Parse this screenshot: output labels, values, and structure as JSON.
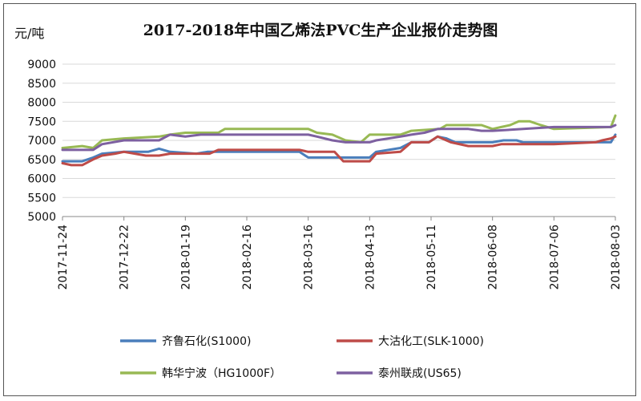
{
  "chart_data": {
    "type": "line",
    "title": "2017-2018年中国乙烯法PVC生产企业报价走势图",
    "ylabel": "元/吨",
    "xlabel": "",
    "ylim": [
      5000,
      9000
    ],
    "yticks": [
      5000,
      5500,
      6000,
      6500,
      7000,
      7500,
      8000,
      8500,
      9000
    ],
    "xlim": [
      "2017-11-24",
      "2018-08-03"
    ],
    "xticks": [
      "2017-11-24",
      "2017-12-22",
      "2018-01-19",
      "2018-02-16",
      "2018-03-16",
      "2018-04-13",
      "2018-05-11",
      "2018-06-08",
      "2018-07-06",
      "2018-08-03"
    ],
    "grid": true,
    "legend": "bottom",
    "series": [
      {
        "name": "齐鲁石化(S1000)",
        "color": "#4a7ebb",
        "points": [
          [
            "2017-11-24",
            6450
          ],
          [
            "2017-12-03",
            6450
          ],
          [
            "2017-12-08",
            6550
          ],
          [
            "2017-12-12",
            6650
          ],
          [
            "2017-12-22",
            6700
          ],
          [
            "2018-01-02",
            6700
          ],
          [
            "2018-01-07",
            6780
          ],
          [
            "2018-01-12",
            6700
          ],
          [
            "2018-01-24",
            6650
          ],
          [
            "2018-01-29",
            6700
          ],
          [
            "2018-03-12",
            6700
          ],
          [
            "2018-03-16",
            6550
          ],
          [
            "2018-04-01",
            6550
          ],
          [
            "2018-04-13",
            6550
          ],
          [
            "2018-04-16",
            6700
          ],
          [
            "2018-04-27",
            6800
          ],
          [
            "2018-05-02",
            6950
          ],
          [
            "2018-05-10",
            6950
          ],
          [
            "2018-05-14",
            7100
          ],
          [
            "2018-05-18",
            7050
          ],
          [
            "2018-05-22",
            6950
          ],
          [
            "2018-06-08",
            6950
          ],
          [
            "2018-06-13",
            7000
          ],
          [
            "2018-06-19",
            7000
          ],
          [
            "2018-06-22",
            6950
          ],
          [
            "2018-07-06",
            6950
          ],
          [
            "2018-07-20",
            6950
          ],
          [
            "2018-08-01",
            6950
          ],
          [
            "2018-08-03",
            7150
          ]
        ]
      },
      {
        "name": "大沽化工(SLK-1000)",
        "color": "#be4b48",
        "points": [
          [
            "2017-11-24",
            6400
          ],
          [
            "2017-11-28",
            6350
          ],
          [
            "2017-12-03",
            6350
          ],
          [
            "2017-12-08",
            6500
          ],
          [
            "2017-12-12",
            6600
          ],
          [
            "2017-12-18",
            6650
          ],
          [
            "2017-12-22",
            6700
          ],
          [
            "2018-01-01",
            6600
          ],
          [
            "2018-01-07",
            6600
          ],
          [
            "2018-01-12",
            6650
          ],
          [
            "2018-01-19",
            6650
          ],
          [
            "2018-01-30",
            6650
          ],
          [
            "2018-02-03",
            6750
          ],
          [
            "2018-03-12",
            6750
          ],
          [
            "2018-03-16",
            6700
          ],
          [
            "2018-03-28",
            6700
          ],
          [
            "2018-04-01",
            6450
          ],
          [
            "2018-04-13",
            6450
          ],
          [
            "2018-04-16",
            6650
          ],
          [
            "2018-04-27",
            6700
          ],
          [
            "2018-05-02",
            6950
          ],
          [
            "2018-05-10",
            6950
          ],
          [
            "2018-05-14",
            7100
          ],
          [
            "2018-05-20",
            6950
          ],
          [
            "2018-05-28",
            6850
          ],
          [
            "2018-06-08",
            6850
          ],
          [
            "2018-06-12",
            6900
          ],
          [
            "2018-07-06",
            6900
          ],
          [
            "2018-07-25",
            6950
          ],
          [
            "2018-07-28",
            7000
          ],
          [
            "2018-08-01",
            7050
          ],
          [
            "2018-08-03",
            7100
          ]
        ]
      },
      {
        "name": "韩华宁波（HG1000F）",
        "color": "#98b954",
        "points": [
          [
            "2017-11-24",
            6800
          ],
          [
            "2017-12-03",
            6850
          ],
          [
            "2017-12-08",
            6800
          ],
          [
            "2017-12-12",
            7000
          ],
          [
            "2017-12-22",
            7050
          ],
          [
            "2018-01-07",
            7100
          ],
          [
            "2018-01-12",
            7150
          ],
          [
            "2018-01-19",
            7200
          ],
          [
            "2018-02-03",
            7200
          ],
          [
            "2018-02-06",
            7300
          ],
          [
            "2018-03-16",
            7300
          ],
          [
            "2018-03-20",
            7200
          ],
          [
            "2018-03-27",
            7150
          ],
          [
            "2018-04-02",
            7000
          ],
          [
            "2018-04-09",
            6950
          ],
          [
            "2018-04-13",
            7150
          ],
          [
            "2018-04-27",
            7150
          ],
          [
            "2018-05-02",
            7250
          ],
          [
            "2018-05-15",
            7300
          ],
          [
            "2018-05-18",
            7400
          ],
          [
            "2018-06-03",
            7400
          ],
          [
            "2018-06-08",
            7300
          ],
          [
            "2018-06-12",
            7350
          ],
          [
            "2018-06-16",
            7400
          ],
          [
            "2018-06-20",
            7500
          ],
          [
            "2018-06-25",
            7500
          ],
          [
            "2018-06-30",
            7400
          ],
          [
            "2018-07-06",
            7300
          ],
          [
            "2018-08-01",
            7350
          ],
          [
            "2018-08-03",
            7650
          ]
        ]
      },
      {
        "name": "泰州联成(US65)",
        "color": "#7d60a0",
        "points": [
          [
            "2017-11-24",
            6750
          ],
          [
            "2017-12-08",
            6750
          ],
          [
            "2017-12-12",
            6900
          ],
          [
            "2017-12-22",
            7000
          ],
          [
            "2018-01-07",
            7000
          ],
          [
            "2018-01-12",
            7150
          ],
          [
            "2018-01-19",
            7100
          ],
          [
            "2018-01-26",
            7150
          ],
          [
            "2018-03-16",
            7150
          ],
          [
            "2018-03-20",
            7100
          ],
          [
            "2018-03-27",
            7000
          ],
          [
            "2018-04-02",
            6950
          ],
          [
            "2018-04-13",
            6950
          ],
          [
            "2018-04-16",
            7000
          ],
          [
            "2018-04-27",
            7100
          ],
          [
            "2018-05-02",
            7150
          ],
          [
            "2018-05-08",
            7200
          ],
          [
            "2018-05-14",
            7300
          ],
          [
            "2018-05-28",
            7300
          ],
          [
            "2018-06-03",
            7250
          ],
          [
            "2018-06-08",
            7250
          ],
          [
            "2018-06-22",
            7300
          ],
          [
            "2018-07-06",
            7350
          ],
          [
            "2018-07-20",
            7350
          ],
          [
            "2018-08-01",
            7350
          ],
          [
            "2018-08-03",
            7400
          ]
        ]
      }
    ]
  }
}
